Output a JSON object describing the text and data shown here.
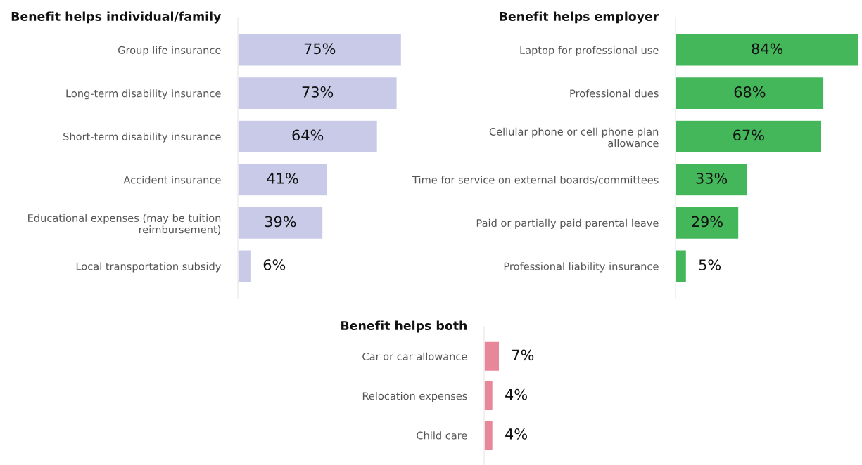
{
  "chart_data": [
    {
      "type": "bar",
      "orientation": "horizontal",
      "title": "Benefit helps individual/family",
      "categories": [
        "Group life insurance",
        "Long-term disability insurance",
        "Short-term disability insurance",
        "Accident insurance",
        "Educational expenses (may be tuition\nreimbursement)",
        "Local transportation subsidy"
      ],
      "values": [
        75,
        73,
        64,
        41,
        39,
        6
      ],
      "color": "#c8cae8",
      "data_labels": true,
      "value_labels": [
        "75%",
        "73%",
        "64%",
        "41%",
        "39%",
        "6%"
      ],
      "tick_labels": "y",
      "grid": false,
      "legend": false
    },
    {
      "type": "bar",
      "orientation": "horizontal",
      "title": "Benefit helps employer",
      "categories": [
        "Laptop for professional use",
        "Professional dues",
        "Cellular phone or cell phone plan\nallowance",
        "Time for service on external boards/committees",
        "Paid or partially paid parental leave",
        "Professional liability insurance"
      ],
      "values": [
        84,
        68,
        67,
        33,
        29,
        5
      ],
      "color": "#44b75a",
      "data_labels": true,
      "value_labels": [
        "84%",
        "68%",
        "67%",
        "33%",
        "29%",
        "5%"
      ],
      "tick_labels": "y",
      "grid": false,
      "legend": false
    },
    {
      "type": "bar",
      "orientation": "horizontal",
      "title": "Benefit helps both",
      "categories": [
        "Car or car allowance",
        "Relocation expenses",
        "Child care"
      ],
      "values": [
        7,
        4,
        4
      ],
      "color": "#e8869a",
      "data_labels": true,
      "value_labels": [
        "7%",
        "4%",
        "4%"
      ],
      "tick_labels": "y",
      "grid": false,
      "legend": false
    }
  ]
}
